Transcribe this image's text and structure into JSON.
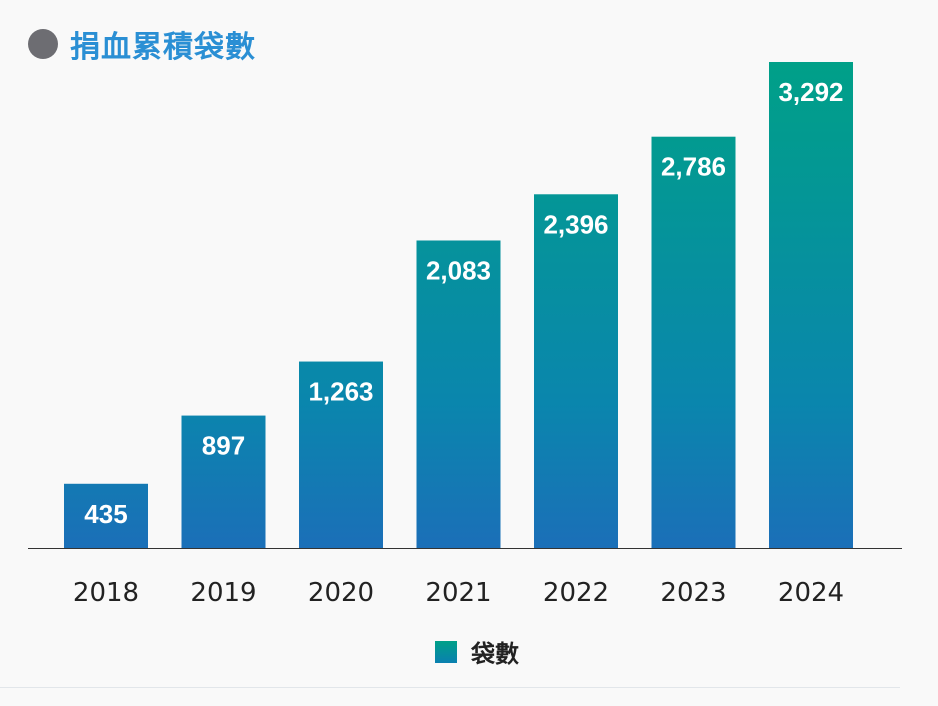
{
  "chart_data": {
    "type": "bar",
    "title": "捐血累積袋數",
    "categories": [
      "2018",
      "2019",
      "2020",
      "2021",
      "2022",
      "2023",
      "2024"
    ],
    "series": [
      {
        "name": "袋數",
        "values": [
          435,
          897,
          1263,
          2083,
          2396,
          2786,
          3292
        ]
      }
    ],
    "data_labels": [
      "435",
      "897",
      "1,263",
      "2,083",
      "2,396",
      "2,786",
      "3,292"
    ],
    "xlabel": "",
    "ylabel": "",
    "grid": false,
    "legend": "bottom-center",
    "colors": {
      "gradient_top": "#00a088",
      "gradient_bottom": "#1b6fb8",
      "title": "#2a8fd4",
      "title_dot": "#6d6d72"
    }
  }
}
